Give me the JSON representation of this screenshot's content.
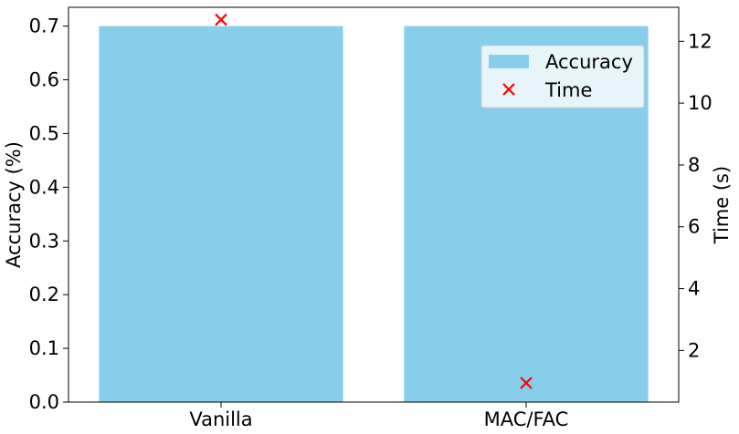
{
  "chart_data": {
    "type": "bar",
    "categories": [
      "Vanilla",
      "MAC/FAC"
    ],
    "series": [
      {
        "name": "Accuracy",
        "axis": "left",
        "kind": "bar",
        "values": [
          0.7,
          0.7
        ],
        "color": "#87ceeb"
      },
      {
        "name": "Time",
        "axis": "right",
        "kind": "scatter",
        "marker": "x",
        "values": [
          12.7,
          0.95
        ],
        "color": "#ff0000"
      }
    ],
    "ylabel": "Accuracy (%)",
    "ylabel_right": "Time (s)",
    "ylim": [
      0,
      0.735
    ],
    "ylim_right": [
      0.33,
      13.1
    ],
    "yticks": [
      "0.0",
      "0.1",
      "0.2",
      "0.3",
      "0.4",
      "0.5",
      "0.6",
      "0.7"
    ],
    "yticks_right": [
      "2",
      "4",
      "6",
      "8",
      "10",
      "12"
    ],
    "grid": false,
    "legend_position": "top-right"
  }
}
